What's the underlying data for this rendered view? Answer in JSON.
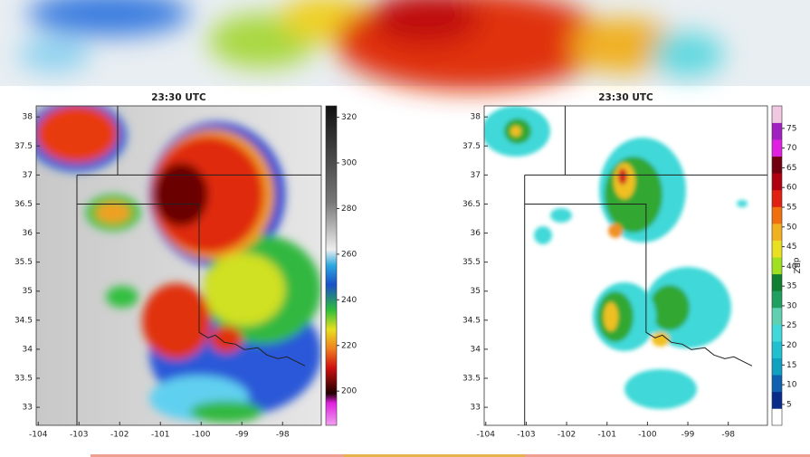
{
  "panels": [
    {
      "title": "23:30 UTC",
      "xticks": [
        -104,
        -103,
        -102,
        -101,
        -100,
        -99,
        -98
      ],
      "xlim": [
        -104.05,
        -97.05
      ],
      "yticks": [
        38,
        37.5,
        37,
        36.5,
        36,
        35.5,
        35,
        34.5,
        34,
        33.5,
        33
      ],
      "ylim": [
        32.69,
        38.19
      ],
      "colorbar_ticks": [
        320,
        300,
        280,
        260,
        240,
        220,
        200
      ],
      "colorbar_lim": [
        185,
        325
      ]
    },
    {
      "title": "23:30 UTC",
      "xticks": [
        -104,
        -103,
        -102,
        -101,
        -100,
        -99,
        -98
      ],
      "xlim": [
        -104.04,
        -97.03
      ],
      "yticks": [
        38,
        37.5,
        37,
        36.5,
        36,
        35.5,
        35,
        34.5,
        34,
        33.5,
        33
      ],
      "ylim": [
        32.69,
        38.19
      ],
      "colorbar_ticks": [
        75,
        70,
        65,
        60,
        55,
        50,
        45,
        40,
        35,
        30,
        25,
        20,
        15,
        10,
        5
      ],
      "colorbar_lim": [
        -0.3,
        80.7
      ],
      "colorbar_label": "dBZ"
    }
  ]
}
